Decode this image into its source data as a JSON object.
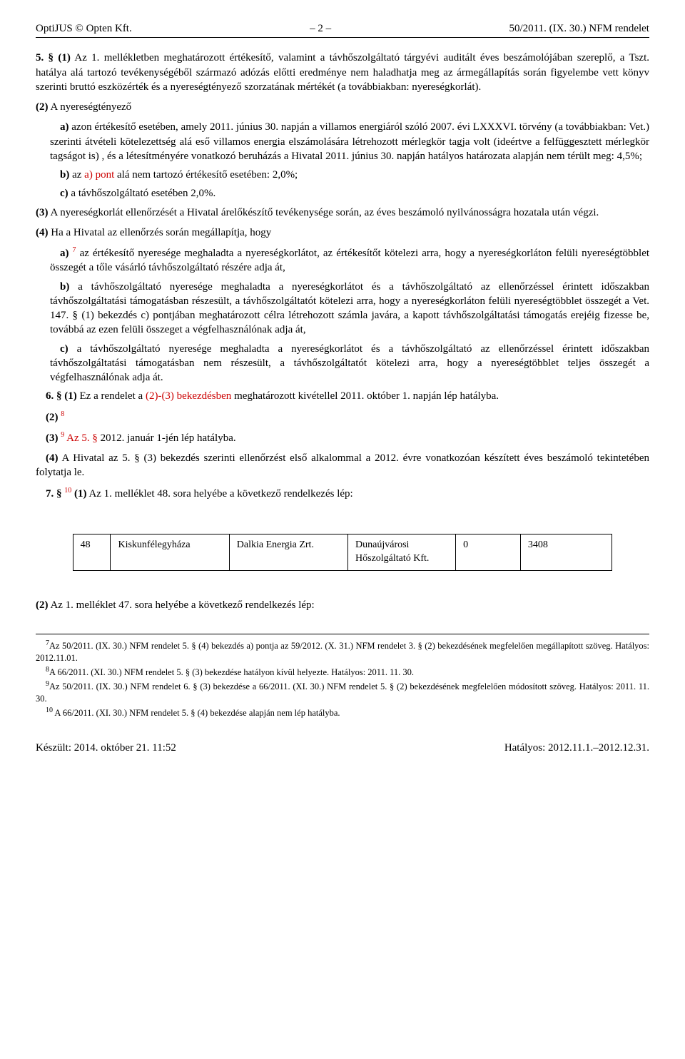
{
  "header": {
    "left": "OptiJUS © Opten Kft.",
    "center": "– 2 –",
    "right": "50/2011. (IX. 30.) NFM rendelet"
  },
  "body": {
    "p5_1": {
      "lead": "5. § (1)",
      "text": "Az 1. mellékletben meghatározott értékesítő, valamint a távhőszolgáltató tárgyévi auditált éves beszámolójában szereplő, a Tszt. hatálya alá tartozó tevékenységéből származó adózás előtti eredménye nem haladhatja meg az ármegállapítás során figyelembe vett könyv szerinti bruttó eszközérték és a nyereségtényező szorzatának mértékét (a továbbiakban: nyereségkorlát)."
    },
    "p5_2_lead": "(2)",
    "p5_2_text": "A nyereségtényező",
    "p5_2_a": {
      "lead": "a)",
      "text1": "azon értékesítő esetében, amely 2011. június 30. napján a villamos energiáról szóló 2007. évi LXXXVI. törvény (a továbbiakban: Vet.) szerinti átvételi kötelezettség alá eső villamos energia elszámolására létrehozott mérlegkör tagja volt (ideértve a felfüggesztett mérlegkör tagságot is) , és a létesítményére vonatkozó beruházás a Hivatal 2011. június 30. napján hatályos határozata alapján nem térült meg: 4,5%;"
    },
    "p5_2_b": {
      "lead": "b)",
      "text1": "az ",
      "red": "a) pont",
      "text2": " alá nem tartozó értékesítő esetében: 2,0%;"
    },
    "p5_2_c": {
      "lead": "c)",
      "text": "a távhőszolgáltató esetében 2,0%."
    },
    "p5_3": {
      "lead": "(3)",
      "text": "A nyereségkorlát ellenőrzését a Hivatal árelőkészítő tevékenysége során, az éves beszámoló nyilvánosságra hozatala után végzi."
    },
    "p5_4_lead": "(4)",
    "p5_4_text": "Ha a Hivatal az ellenőrzés során megállapítja, hogy",
    "p5_4_a": {
      "lead": "a)",
      "sup": "7",
      "text": " az értékesítő nyeresége meghaladta a nyereségkorlátot, az értékesítőt kötelezi arra, hogy a nyereségkorláton felüli nyereségtöbblet összegét a tőle vásárló távhőszolgáltató részére adja át,"
    },
    "p5_4_b": {
      "lead": "b)",
      "text": "a távhőszolgáltató nyeresége meghaladta a nyereségkorlátot és a távhőszolgáltató az ellenőrzéssel érintett időszakban távhőszolgáltatási támogatásban részesült, a távhőszolgáltatót kötelezi arra, hogy a nyereségkorláton felüli nyereségtöbblet összegét a Vet. 147. § (1) bekezdés c) pontjában meghatározott célra létrehozott számla javára, a kapott távhőszolgáltatási támogatás erejéig fizesse be, továbbá az ezen felüli összeget a végfelhasználónak adja át,"
    },
    "p5_4_c": {
      "lead": "c)",
      "text": "a távhőszolgáltató nyeresége meghaladta a nyereségkorlátot és a távhőszolgáltató az ellenőrzéssel érintett időszakban távhőszolgáltatási támogatásban nem részesült, a távhőszolgáltatót kötelezi arra, hogy a nyereségtöbblet teljes összegét a végfelhasználónak adja át."
    },
    "p6_1": {
      "lead": "6. § (1)",
      "text1": "Ez a rendelet a ",
      "red": "(2)-(3) bekezdésben",
      "text2": " meghatározott kivétellel 2011. október 1. napján lép hatályba."
    },
    "p6_2": {
      "lead": "(2)",
      "sup": "8"
    },
    "p6_3": {
      "lead": "(3)",
      "sup": "9",
      "red": " Az 5. §",
      "text": " 2012. január 1-jén lép hatályba."
    },
    "p6_4": {
      "lead": "(4)",
      "text": "A Hivatal az 5. § (3) bekezdés szerinti ellenőrzést első alkalommal a 2012. évre vonatkozóan készített éves beszámoló tekintetében folytatja le."
    },
    "p7_1": {
      "lead": "7. §",
      "sup": "10",
      "lead2": " (1)",
      "text": "Az 1. melléklet 48. sora helyébe a következő rendelkezés lép:"
    },
    "p7_2": {
      "lead": "(2)",
      "text": "Az 1. melléklet 47. sora helyébe a következő rendelkezés lép:"
    }
  },
  "table1": {
    "columns": [
      {
        "width": "7%"
      },
      {
        "width": "22%"
      },
      {
        "width": "22%"
      },
      {
        "width": "20%"
      },
      {
        "width": "12%"
      },
      {
        "width": "17%"
      }
    ],
    "rows": [
      [
        "48",
        "Kiskunfélegyháza",
        "Dalkia Energia Zrt.",
        "Dunaújvárosi Hőszolgáltató Kft.",
        "0",
        "3408"
      ]
    ]
  },
  "footnotes": {
    "fn7": {
      "sup": "7",
      "text": "Az 50/2011. (IX. 30.) NFM rendelet 5. § (4) bekezdés a) pontja az 59/2012. (X. 31.) NFM rendelet 3. § (2) bekezdésének megfelelően megállapított szöveg. Hatályos: 2012.11.01."
    },
    "fn8": {
      "sup": "8",
      "text": "A 66/2011. (XI. 30.) NFM rendelet 5. § (3) bekezdése hatályon kívül helyezte. Hatályos: 2011. 11. 30."
    },
    "fn9": {
      "sup": "9",
      "text": "Az 50/2011. (IX. 30.) NFM rendelet 6. § (3) bekezdése a 66/2011. (XI. 30.) NFM rendelet 5. § (2) bekezdésének megfelelően módosított szöveg. Hatályos: 2011. 11. 30."
    },
    "fn10": {
      "sup": "10",
      "text": " A 66/2011. (XI. 30.) NFM rendelet 5. § (4) bekezdése alapján nem lép hatályba."
    }
  },
  "footer": {
    "left": "Készült: 2014. október 21. 11:52",
    "right": "Hatályos: 2012.11.1.–2012.12.31."
  }
}
